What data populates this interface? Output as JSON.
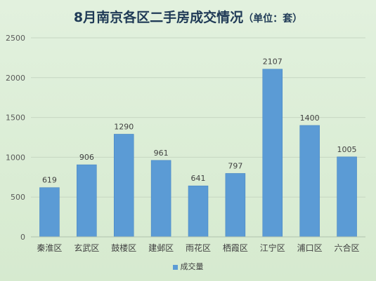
{
  "colors": {
    "bar": "#5b9bd5",
    "bar_dark": "#3f7fc0",
    "grid": "#c6d6c2",
    "axis_text": "#595959"
  },
  "chart_data": {
    "type": "bar",
    "title": "8月南京各区二手房成交情况",
    "subtitle": "（单位：套）",
    "categories": [
      "秦淮区",
      "玄武区",
      "鼓楼区",
      "建邺区",
      "雨花区",
      "栖霞区",
      "江宁区",
      "浦口区",
      "六合区"
    ],
    "series": [
      {
        "name": "成交量",
        "values": [
          619,
          906,
          1290,
          961,
          641,
          797,
          2107,
          1400,
          1005
        ]
      }
    ],
    "ylim": [
      0,
      2500
    ],
    "yticks": [
      0,
      500,
      1000,
      1500,
      2000,
      2500
    ],
    "xlabel": "",
    "ylabel": "",
    "grid": true,
    "legend": "bottom"
  }
}
